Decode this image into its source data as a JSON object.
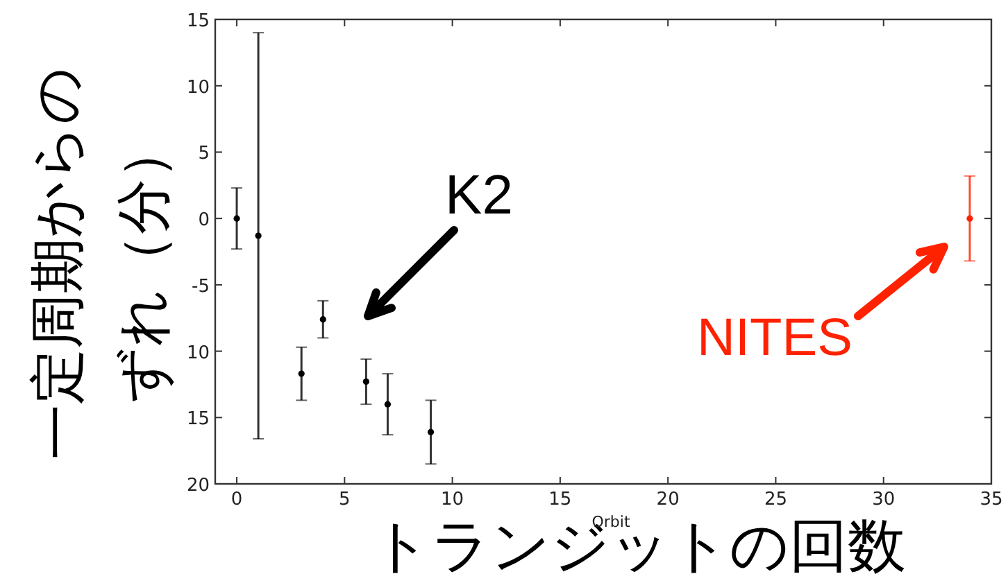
{
  "chart_data": {
    "type": "scatter",
    "xlabel": "トランジットの回数",
    "ylabel": "一定周期からのずれ（分）",
    "xlim": [
      -1,
      35
    ],
    "xticks": [
      0,
      5,
      10,
      15,
      20,
      25,
      30,
      35
    ],
    "ylim": [
      -20,
      15
    ],
    "yticks": [
      {
        "value": -20,
        "label": "20"
      },
      {
        "value": -15,
        "label": "15"
      },
      {
        "value": -10,
        "label": "10"
      },
      -5,
      0,
      5,
      10,
      15
    ],
    "marker": "circle",
    "grid": false,
    "series": [
      {
        "color": "#000000",
        "x": [
          0,
          1,
          3,
          4,
          6,
          7,
          9
        ],
        "values": [
          0,
          -1.3,
          -11.7,
          -7.6,
          -12.3,
          -14,
          -16.1
        ],
        "errors": [
          2.3,
          15.3,
          2,
          1.4,
          1.7,
          2.3,
          2.4
        ]
      },
      {
        "color": "#ff2200",
        "x": [
          34
        ],
        "values": [
          0
        ],
        "errors": [
          3.2
        ]
      }
    ],
    "annotations": [
      "Orbit",
      "K2",
      "NITES"
    ]
  }
}
